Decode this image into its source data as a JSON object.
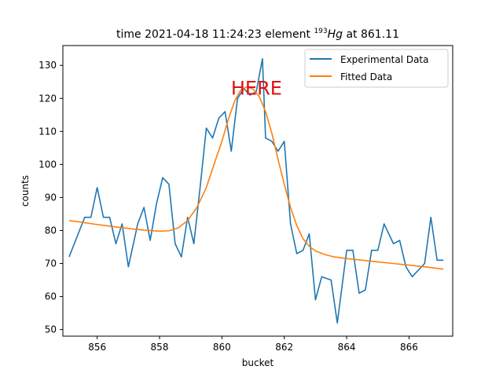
{
  "chart_data": {
    "type": "line",
    "title": {
      "prefix": "time 2021-04-18 11:24:23 element ",
      "isotope_mass": "193",
      "isotope_symbol": "Hg",
      "suffix": " at 861.11"
    },
    "xlabel": "bucket",
    "ylabel": "counts",
    "xlim": [
      854.9,
      867.4
    ],
    "ylim": [
      48,
      136
    ],
    "xticks": [
      856,
      858,
      860,
      862,
      864,
      866
    ],
    "yticks": [
      50,
      60,
      70,
      80,
      90,
      100,
      110,
      120,
      130
    ],
    "grid": false,
    "legend_position": "top-right",
    "annotation": {
      "text": "HERE",
      "x": 861.11,
      "y": 123.5,
      "color": "#e01010"
    },
    "series": [
      {
        "name": "Experimental Data",
        "color": "#1f77b4",
        "x": [
          855.1,
          855.6,
          855.8,
          856.0,
          856.2,
          856.4,
          856.6,
          856.8,
          857.0,
          857.3,
          857.5,
          857.7,
          857.9,
          858.1,
          858.3,
          858.5,
          858.7,
          858.9,
          859.1,
          859.3,
          859.5,
          859.7,
          859.9,
          860.1,
          860.3,
          860.5,
          860.7,
          860.9,
          861.1,
          861.3,
          861.4,
          861.6,
          861.8,
          862.0,
          862.2,
          862.4,
          862.6,
          862.8,
          863.0,
          863.2,
          863.5,
          863.7,
          864.0,
          864.2,
          864.4,
          864.6,
          864.8,
          865.0,
          865.2,
          865.5,
          865.7,
          865.9,
          866.1,
          866.5,
          866.7,
          866.9,
          867.1
        ],
        "y": [
          72,
          84,
          84,
          93,
          84,
          84,
          76,
          82,
          69,
          82,
          87,
          77,
          88,
          96,
          94,
          76,
          72,
          84,
          76,
          93,
          111,
          108,
          114,
          116,
          104,
          120,
          123,
          121,
          122,
          132,
          108,
          107,
          104,
          107,
          82,
          73,
          74,
          79,
          59,
          66,
          65,
          52,
          74,
          74,
          61,
          62,
          74,
          74,
          82,
          76,
          77,
          69,
          66,
          70,
          84,
          71,
          71
        ]
      },
      {
        "name": "Fitted Data",
        "color": "#ff7f0e",
        "x": [
          855.1,
          855.5,
          856.0,
          856.5,
          857.0,
          857.5,
          858.0,
          858.3,
          858.6,
          858.9,
          859.2,
          859.5,
          859.8,
          860.0,
          860.2,
          860.4,
          860.6,
          860.8,
          861.0,
          861.2,
          861.4,
          861.6,
          861.8,
          862.0,
          862.2,
          862.4,
          862.6,
          862.8,
          863.0,
          863.3,
          863.6,
          864.0,
          864.5,
          865.0,
          865.5,
          866.0,
          866.5,
          867.1
        ],
        "y": [
          83,
          82.5,
          81.8,
          81.2,
          80.6,
          80.1,
          79.8,
          79.9,
          80.8,
          83.0,
          87.0,
          93.0,
          101.5,
          107.0,
          113.5,
          119.0,
          122.5,
          123.5,
          122.8,
          120.5,
          116.0,
          109.5,
          101.5,
          94.0,
          87.0,
          81.5,
          77.5,
          75.2,
          73.8,
          72.7,
          72.0,
          71.5,
          71.0,
          70.5,
          70.0,
          69.5,
          69.0,
          68.3
        ]
      }
    ]
  }
}
